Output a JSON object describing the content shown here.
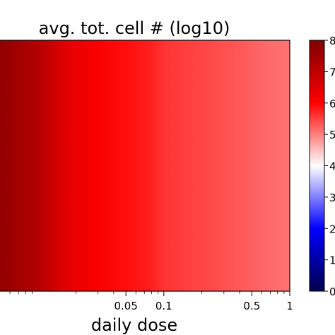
{
  "chart_data": {
    "type": "heatmap",
    "title": "avg. tot. cell # (log10)",
    "xlabel": "daily dose",
    "ylabel": "",
    "x_scale": "log",
    "x_ticks": [
      {
        "value": 0.05,
        "label": "0.05"
      },
      {
        "value": 0.1,
        "label": "0.1"
      },
      {
        "value": 0.5,
        "label": "0.5"
      },
      {
        "value": 1,
        "label": "1"
      }
    ],
    "columns": [
      {
        "x": 0.005,
        "value": 7.7
      },
      {
        "x": 0.01,
        "value": 7.2
      },
      {
        "x": 0.015,
        "value": 6.6
      },
      {
        "x": 0.02,
        "value": 6.3
      },
      {
        "x": 0.03,
        "value": 6.1
      },
      {
        "x": 0.05,
        "value": 5.9
      },
      {
        "x": 0.08,
        "value": 5.75
      },
      {
        "x": 0.1,
        "value": 5.6
      },
      {
        "x": 0.2,
        "value": 5.45
      },
      {
        "x": 0.35,
        "value": 5.35
      },
      {
        "x": 0.6,
        "value": 5.2
      },
      {
        "x": 1,
        "value": 5.1
      }
    ],
    "colorbar": {
      "colormap": "seismic",
      "range": [
        0,
        8
      ],
      "tick_labels": [
        "0",
        "1",
        "2",
        "3",
        "4",
        "5",
        "6",
        "7",
        "8"
      ]
    },
    "grid": false,
    "legend": "none"
  }
}
